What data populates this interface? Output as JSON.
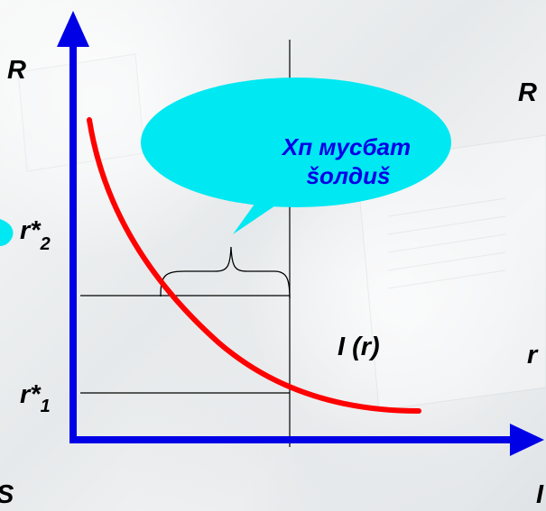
{
  "labels": {
    "y_axis_left": "R",
    "y_axis_right": "R",
    "r_star_2": "r*",
    "r_star_2_sub": "2",
    "r_star_1": "r*",
    "r_star_1_sub": "1",
    "curve": "I (r)",
    "right_edge_r": "r",
    "bottom_left_s": "S",
    "bottom_right": "I"
  },
  "callout": {
    "line1": "Xп мусбат",
    "line2": "šолдиš"
  },
  "colors": {
    "axis": "#0000e6",
    "curve": "#ff0000",
    "callout_fill": "#00e8f2",
    "callout_text": "#0000e6",
    "line": "#000000"
  }
}
